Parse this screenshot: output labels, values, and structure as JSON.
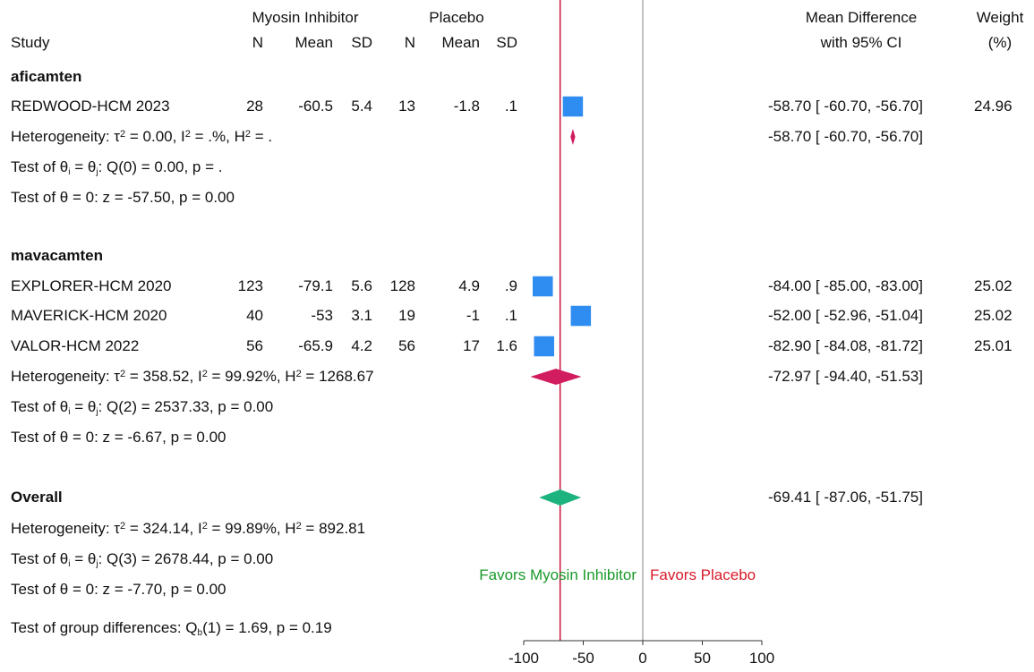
{
  "header": {
    "group_treat": "Myosin Inhibitor",
    "group_ctrl": "Placebo",
    "study": "Study",
    "n": "N",
    "mean": "Mean",
    "sd": "SD",
    "md_line1": "Mean Difference",
    "md_line2": "with 95% CI",
    "weight_line1": "Weight",
    "weight_line2": "(%)"
  },
  "groups": [
    {
      "name": "aficamten",
      "studies": [
        {
          "study": "REDWOOD-HCM 2023",
          "n1": "28",
          "mean1": "-60.5",
          "sd1": "5.4",
          "n2": "13",
          "mean2": "-1.8",
          "sd2": ".1",
          "ci_text": "-58.70 [ -60.70,  -56.70]",
          "weight": "24.96"
        }
      ],
      "het_text": "Heterogeneity: τ² = 0.00, I² = .%, H² = .",
      "summary_ci_text": "-58.70 [ -60.70,  -56.70]",
      "test_eq_text": "Test of θi = θj: Q(0) = 0.00, p = .",
      "test_zero_text": "Test of θ = 0: z = -57.50, p = 0.00"
    },
    {
      "name": "mavacamten",
      "studies": [
        {
          "study": "EXPLORER-HCM  2020",
          "n1": "123",
          "mean1": "-79.1",
          "sd1": "5.6",
          "n2": "128",
          "mean2": "4.9",
          "sd2": ".9",
          "ci_text": "-84.00 [ -85.00,  -83.00]",
          "weight": "25.02"
        },
        {
          "study": "MAVERICK-HCM 2020",
          "n1": "40",
          "mean1": "-53",
          "sd1": "3.1",
          "n2": "19",
          "mean2": "-1",
          "sd2": ".1",
          "ci_text": "-52.00 [ -52.96,  -51.04]",
          "weight": "25.02"
        },
        {
          "study": "VALOR-HCM 2022",
          "n1": "56",
          "mean1": "-65.9",
          "sd1": "4.2",
          "n2": "56",
          "mean2": "17",
          "sd2": "1.6",
          "ci_text": "-82.90 [ -84.08,  -81.72]",
          "weight": "25.01"
        }
      ],
      "het_text": "Heterogeneity: τ² = 358.52, I² = 99.92%, H² = 1268.67",
      "summary_ci_text": "-72.97 [ -94.40,  -51.53]",
      "test_eq_text": "Test of θi = θj: Q(2) = 2537.33, p = 0.00",
      "test_zero_text": "Test of θ = 0: z = -6.67, p = 0.00"
    }
  ],
  "overall": {
    "label": "Overall",
    "ci_text": "-69.41 [ -87.06,  -51.75]",
    "het_text": "Heterogeneity: τ² = 324.14, I² = 99.89%, H² = 892.81",
    "test_eq_text": "Test of θi = θj: Q(3) = 2678.44, p = 0.00",
    "test_zero_text": "Test of θ = 0: z = -7.70, p = 0.00"
  },
  "group_diff_text": "Test of group differences: Qb(1) = 1.69, p = 0.19",
  "favors_left": "Favors Myosin Inhibitor",
  "favors_right": "Favors Placebo",
  "colors": {
    "study_marker": "#2f8cf0",
    "subgroup_diamond": "#d11c5f",
    "overall_diamond": "#1db37e",
    "overall_line": "#c8113f",
    "null_line": "#9a9a9a",
    "favors_left": "#1a9a2a",
    "favors_right": "#d81b2a"
  },
  "chart_data": {
    "type": "forest",
    "xlim": [
      -100,
      100
    ],
    "xticks": [
      -100,
      -50,
      0,
      50,
      100
    ],
    "null_value": 0,
    "overall_reference": -69.41,
    "studies": [
      {
        "study": "REDWOOD-HCM 2023",
        "group": "aficamten",
        "effect": -58.7,
        "ci_low": -60.7,
        "ci_high": -56.7,
        "weight": 24.96
      },
      {
        "study": "EXPLORER-HCM  2020",
        "group": "mavacamten",
        "effect": -84.0,
        "ci_low": -85.0,
        "ci_high": -83.0,
        "weight": 25.02
      },
      {
        "study": "MAVERICK-HCM 2020",
        "group": "mavacamten",
        "effect": -52.0,
        "ci_low": -52.96,
        "ci_high": -51.04,
        "weight": 25.02
      },
      {
        "study": "VALOR-HCM 2022",
        "group": "mavacamten",
        "effect": -82.9,
        "ci_low": -84.08,
        "ci_high": -81.72,
        "weight": 25.01
      }
    ],
    "subgroup_summaries": [
      {
        "group": "aficamten",
        "effect": -58.7,
        "ci_low": -60.7,
        "ci_high": -56.7
      },
      {
        "group": "mavacamten",
        "effect": -72.97,
        "ci_low": -94.4,
        "ci_high": -51.53
      }
    ],
    "overall": {
      "effect": -69.41,
      "ci_low": -87.06,
      "ci_high": -51.75
    }
  }
}
